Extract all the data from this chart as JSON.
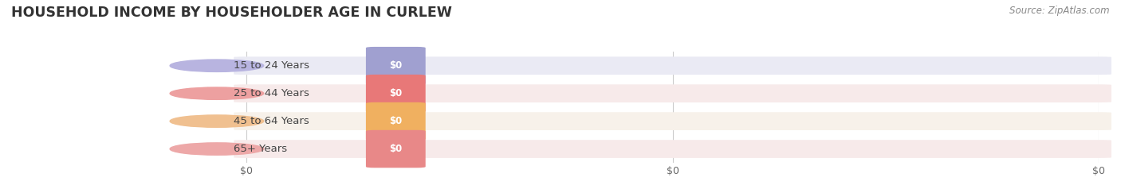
{
  "title": "HOUSEHOLD INCOME BY HOUSEHOLDER AGE IN CURLEW",
  "source": "Source: ZipAtlas.com",
  "categories": [
    "15 to 24 Years",
    "25 to 44 Years",
    "45 to 64 Years",
    "65+ Years"
  ],
  "values": [
    0,
    0,
    0,
    0
  ],
  "bar_colors": [
    "#a0a0d0",
    "#e87878",
    "#f0b060",
    "#e88888"
  ],
  "bar_bg_colors": [
    "#eaeaf4",
    "#f7eaea",
    "#f7f1ea",
    "#f7eaea"
  ],
  "label_circle_colors": [
    "#b8b4e0",
    "#eda0a0",
    "#f0c090",
    "#eda8a8"
  ],
  "background_color": "#ffffff",
  "bar_height": 0.62,
  "xlim_max": 1.0,
  "n_xticks": 3,
  "xtick_positions": [
    0.0,
    0.5,
    1.0
  ],
  "xtick_labels": [
    "$0",
    "$0",
    "$0"
  ],
  "title_fontsize": 12.5,
  "source_fontsize": 8.5,
  "label_fontsize": 9.5,
  "badge_fontsize": 8.5
}
